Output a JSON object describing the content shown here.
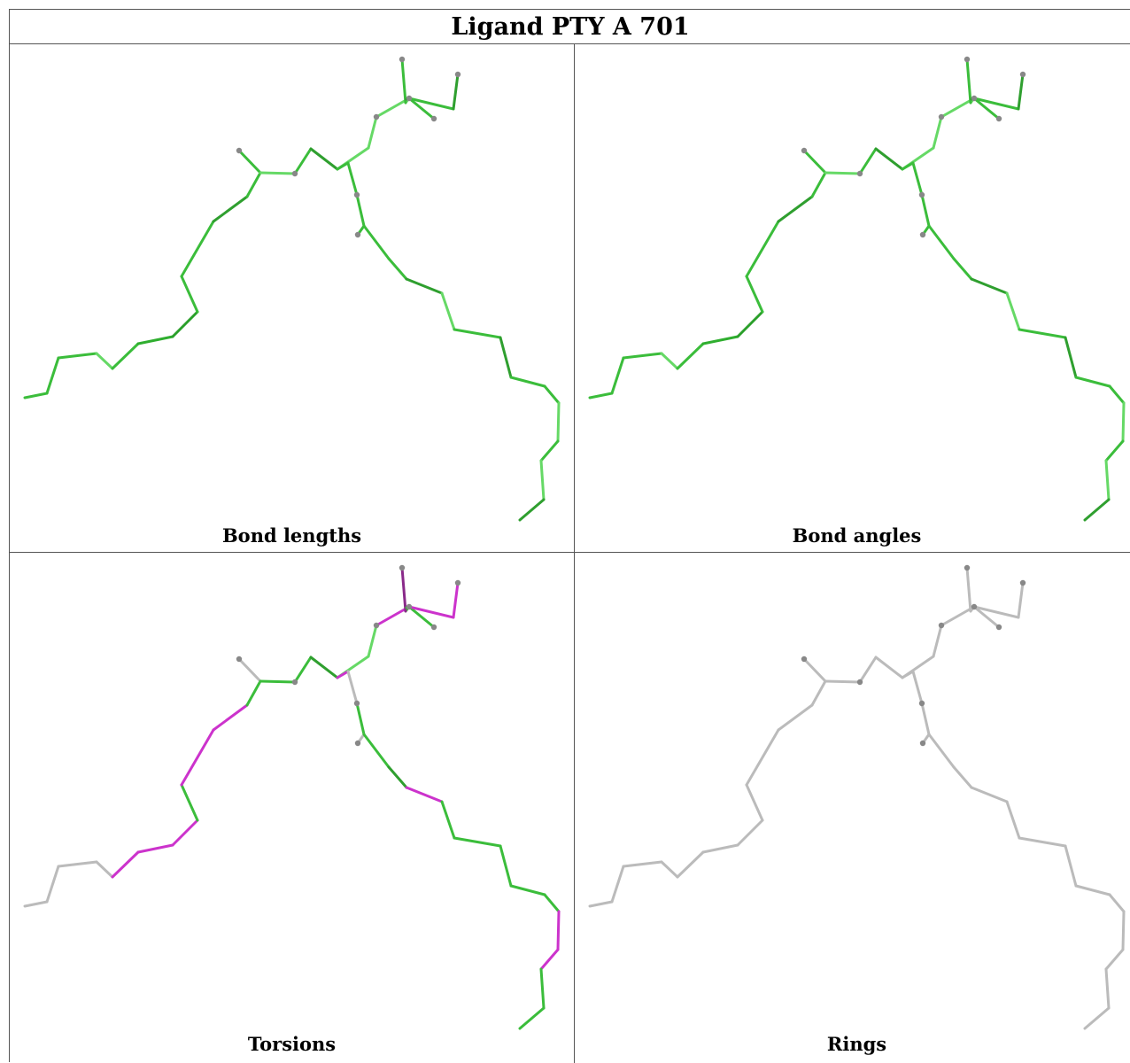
{
  "title": "Ligand PTY A 701",
  "panels": [
    {
      "caption": "Bond lengths",
      "bond_colors": [
        "#3bbd3b",
        "#3bbd3b",
        "#3bbd3b",
        "#66d966",
        "#3bbd3b",
        "#2fae2f",
        "#2a9f2a",
        "#3bbd3b",
        "#3bbd3b",
        "#2f9f2f",
        "#3bbd3b",
        "#3bbd3b",
        "#66d966",
        "#3bbd3b",
        "#2f9f2f",
        "#66d966",
        "#66d966",
        "#66d966",
        "#3bbd3b",
        "#3bbd3b",
        "#2f9f2f",
        "#66d966",
        "#3bbd3b",
        "#2f9f2f",
        "#3bbd3b",
        "#3bbd3b",
        "#3bbd3b",
        "#3bbd3b",
        "#3bbd3b",
        "#3bbd3b",
        "#2f9f2f",
        "#66d966",
        "#3bbd3b",
        "#2f9f2f",
        "#3bbd3b",
        "#3bbd3b",
        "#66d966",
        "#3bbd3b",
        "#66d966",
        "#2f9f2f"
      ],
      "atom_color": "#888888"
    },
    {
      "caption": "Bond angles",
      "bond_colors": [
        "#3bbd3b",
        "#3bbd3b",
        "#3bbd3b",
        "#66d966",
        "#3bbd3b",
        "#2fae2f",
        "#2a9f2a",
        "#3bbd3b",
        "#3bbd3b",
        "#2f9f2f",
        "#3bbd3b",
        "#3bbd3b",
        "#66d966",
        "#3bbd3b",
        "#2f9f2f",
        "#66d966",
        "#66d966",
        "#66d966",
        "#3bbd3b",
        "#3bbd3b",
        "#2f9f2f",
        "#66d966",
        "#3bbd3b",
        "#2f9f2f",
        "#3bbd3b",
        "#3bbd3b",
        "#3bbd3b",
        "#3bbd3b",
        "#3bbd3b",
        "#3bbd3b",
        "#2f9f2f",
        "#66d966",
        "#3bbd3b",
        "#2f9f2f",
        "#3bbd3b",
        "#3bbd3b",
        "#66d966",
        "#3bbd3b",
        "#66d966",
        "#2f9f2f"
      ],
      "atom_color": "#888888"
    },
    {
      "caption": "Torsions",
      "bond_colors": [
        "#bbbbbb",
        "#bbbbbb",
        "#bbbbbb",
        "#bbbbbb",
        "#cc33cc",
        "#cc33cc",
        "#cc33cc",
        "#3bbd3b",
        "#cc33cc",
        "#cc33cc",
        "#3bbd3b",
        "#bbbbbb",
        "#3bbd3b",
        "#3bbd3b",
        "#2f9f2f",
        "#66d966",
        "#66d966",
        "#cc33cc",
        "#3bbd3b",
        "#cc33cc",
        "#cc33cc",
        "#3bbd3b",
        "#8a2a8a",
        "#3bbd3b",
        "#cc33cc",
        "#bbbbbb",
        "#3bbd3b",
        "#bbbbbb",
        "#3bbd3b",
        "#2f9f2f",
        "#cc33cc",
        "#3bbd3b",
        "#3bbd3b",
        "#3bbd3b",
        "#3bbd3b",
        "#3bbd3b",
        "#cc33cc",
        "#cc33cc",
        "#3bbd3b",
        "#3bbd3b"
      ],
      "atom_color": "#888888"
    },
    {
      "caption": "Rings",
      "bond_colors": [
        "#bbbbbb",
        "#bbbbbb",
        "#bbbbbb",
        "#bbbbbb",
        "#bbbbbb",
        "#bbbbbb",
        "#bbbbbb",
        "#bbbbbb",
        "#bbbbbb",
        "#bbbbbb",
        "#bbbbbb",
        "#bbbbbb",
        "#bbbbbb",
        "#bbbbbb",
        "#bbbbbb",
        "#bbbbbb",
        "#bbbbbb",
        "#bbbbbb",
        "#bbbbbb",
        "#bbbbbb",
        "#bbbbbb",
        "#bbbbbb",
        "#bbbbbb",
        "#bbbbbb",
        "#bbbbbb",
        "#bbbbbb",
        "#bbbbbb",
        "#bbbbbb",
        "#bbbbbb",
        "#bbbbbb",
        "#bbbbbb",
        "#bbbbbb",
        "#bbbbbb",
        "#bbbbbb",
        "#bbbbbb",
        "#bbbbbb",
        "#bbbbbb",
        "#bbbbbb",
        "#bbbbbb",
        "#bbbbbb"
      ],
      "atom_color": "#888888"
    }
  ]
}
